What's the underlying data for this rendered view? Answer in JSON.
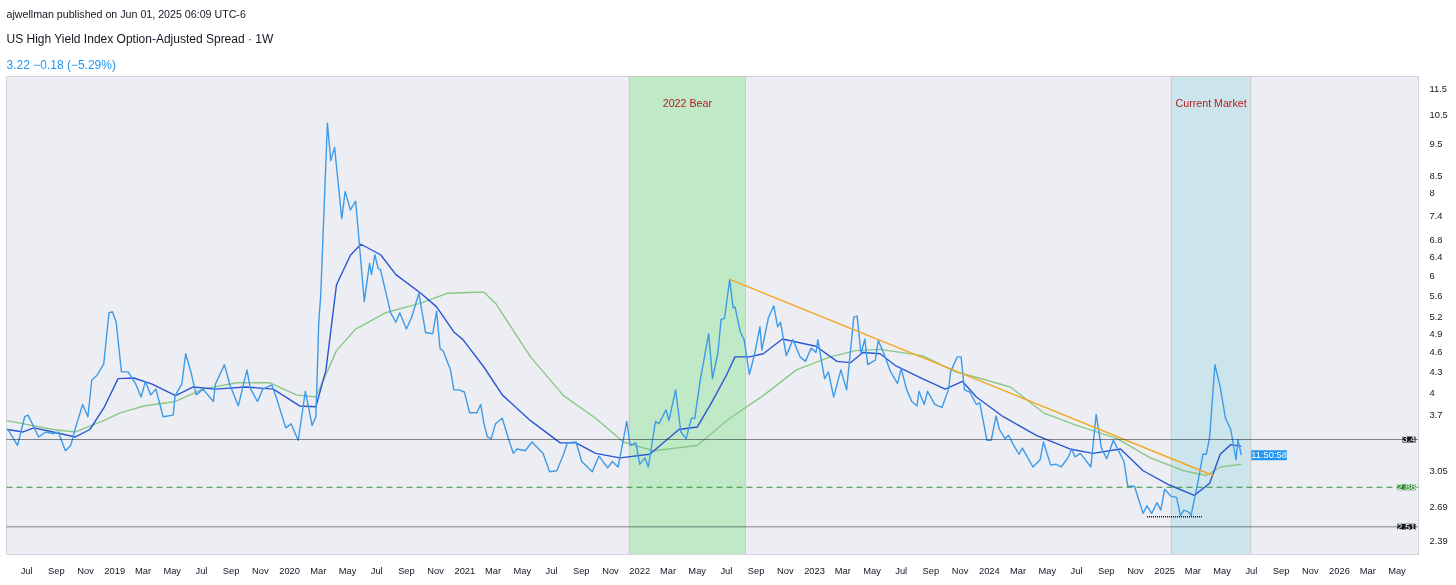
{
  "chart_data": {
    "type": "line",
    "title": "US High Yield Index Option-Adjusted Spread · 1W",
    "subtitle": "3.22 −0.18 (−5.29%)",
    "annotations": [
      "ajwellman published on Jun 01, 2025 06:09 UTC-6",
      {
        "text": "11:50:58",
        "x": "2025-06-10",
        "y": 3.22
      }
    ],
    "log": "y",
    "grid": false,
    "marker": "none",
    "xlim": [
      "2018-05-20",
      "2026-06-15"
    ],
    "ylim": [
      2.28,
      12.0
    ],
    "xticks": [
      {
        "value": "2018-07-01",
        "label": "Jul"
      },
      {
        "value": "2018-09-01",
        "label": "Sep"
      },
      {
        "value": "2018-11-01",
        "label": "Nov"
      },
      {
        "value": "2019-01-01",
        "label": "2019"
      },
      {
        "value": "2019-03-01",
        "label": "Mar"
      },
      {
        "value": "2019-05-01",
        "label": "May"
      },
      {
        "value": "2019-07-01",
        "label": "Jul"
      },
      {
        "value": "2019-09-01",
        "label": "Sep"
      },
      {
        "value": "2019-11-01",
        "label": "Nov"
      },
      {
        "value": "2020-01-01",
        "label": "2020"
      },
      {
        "value": "2020-03-01",
        "label": "Mar"
      },
      {
        "value": "2020-05-01",
        "label": "May"
      },
      {
        "value": "2020-07-01",
        "label": "Jul"
      },
      {
        "value": "2020-09-01",
        "label": "Sep"
      },
      {
        "value": "2020-11-01",
        "label": "Nov"
      },
      {
        "value": "2021-01-01",
        "label": "2021"
      },
      {
        "value": "2021-03-01",
        "label": "Mar"
      },
      {
        "value": "2021-05-01",
        "label": "May"
      },
      {
        "value": "2021-07-01",
        "label": "Jul"
      },
      {
        "value": "2021-09-01",
        "label": "Sep"
      },
      {
        "value": "2021-11-01",
        "label": "Nov"
      },
      {
        "value": "2022-01-01",
        "label": "2022"
      },
      {
        "value": "2022-03-01",
        "label": "Mar"
      },
      {
        "value": "2022-05-01",
        "label": "May"
      },
      {
        "value": "2022-07-01",
        "label": "Jul"
      },
      {
        "value": "2022-09-01",
        "label": "Sep"
      },
      {
        "value": "2022-11-01",
        "label": "Nov"
      },
      {
        "value": "2023-01-01",
        "label": "2023"
      },
      {
        "value": "2023-03-01",
        "label": "Mar"
      },
      {
        "value": "2023-05-01",
        "label": "May"
      },
      {
        "value": "2023-07-01",
        "label": "Jul"
      },
      {
        "value": "2023-09-01",
        "label": "Sep"
      },
      {
        "value": "2023-11-01",
        "label": "Nov"
      },
      {
        "value": "2024-01-01",
        "label": "2024"
      },
      {
        "value": "2024-03-01",
        "label": "Mar"
      },
      {
        "value": "2024-05-01",
        "label": "May"
      },
      {
        "value": "2024-07-01",
        "label": "Jul"
      },
      {
        "value": "2024-09-01",
        "label": "Sep"
      },
      {
        "value": "2024-11-01",
        "label": "Nov"
      },
      {
        "value": "2025-01-01",
        "label": "2025"
      },
      {
        "value": "2025-03-01",
        "label": "Mar"
      },
      {
        "value": "2025-05-01",
        "label": "May"
      },
      {
        "value": "2025-07-01",
        "label": "Jul"
      },
      {
        "value": "2025-09-01",
        "label": "Sep"
      },
      {
        "value": "2025-11-01",
        "label": "Nov"
      },
      {
        "value": "2026-01-01",
        "label": "2026"
      },
      {
        "value": "2026-03-01",
        "label": "Mar"
      },
      {
        "value": "2026-05-01",
        "label": "May"
      }
    ],
    "yticks": [
      2.39,
      2.69,
      3.05,
      3.7,
      4,
      4.3,
      4.6,
      4.9,
      5.2,
      5.6,
      6,
      6.4,
      6.8,
      7.4,
      8,
      8.5,
      9.5,
      10.5,
      11.5
    ],
    "ref_lines": [
      {
        "axis": "y",
        "value": 3.4,
        "label": "3.4",
        "color": "#131722",
        "line_style": "dotted"
      },
      {
        "axis": "y",
        "value": 2.88,
        "label": "2.88",
        "color": "#388e3c",
        "line_style": "dashed"
      },
      {
        "axis": "y",
        "value": 2.51,
        "label": "2.51",
        "color": "#131722",
        "line_style": "dotted"
      }
    ],
    "bands": [
      {
        "axis": "x",
        "from": "2021-12-10",
        "to": "2022-08-10",
        "label": "2022 Bear",
        "color": "#b9e8bf"
      },
      {
        "axis": "x",
        "from": "2025-01-15",
        "to": "2025-06-30",
        "label": "Current Market",
        "color": "#c7e2ea"
      }
    ],
    "series": [
      {
        "color": "#8cc78a",
        "x": [
          "2018-05-21",
          "2018-08-25",
          "2018-10-11",
          "2018-12-09",
          "2019-01-12",
          "2019-03-03",
          "2019-05-08",
          "2019-07-04",
          "2019-09-12",
          "2019-11-21",
          "2020-01-15",
          "2020-02-25",
          "2020-04-08",
          "2020-05-18",
          "2020-07-19",
          "2020-10-01",
          "2020-11-25",
          "2021-01-26",
          "2021-02-10",
          "2021-03-06",
          "2021-05-18",
          "2021-07-26",
          "2021-10-01",
          "2021-11-28",
          "2022-01-30",
          "2022-05-01",
          "2022-07-08",
          "2022-09-16",
          "2022-11-24",
          "2023-02-03",
          "2023-03-28",
          "2023-05-18",
          "2023-08-14",
          "2023-10-23",
          "2023-12-05",
          "2024-02-14",
          "2024-04-23",
          "2024-07-01",
          "2024-09-24",
          "2024-12-02",
          "2025-02-10",
          "2025-03-29",
          "2025-04-27",
          "2025-06-10"
        ],
        "values": [
          3.63,
          3.52,
          3.49,
          3.63,
          3.73,
          3.82,
          3.88,
          4.05,
          4.14,
          4.14,
          3.97,
          3.94,
          4.63,
          4.99,
          5.28,
          5.46,
          5.65,
          5.67,
          5.67,
          5.46,
          4.53,
          3.96,
          3.66,
          3.37,
          3.27,
          3.33,
          3.66,
          3.96,
          4.33,
          4.53,
          4.63,
          4.65,
          4.55,
          4.3,
          4.22,
          4.08,
          3.73,
          3.57,
          3.41,
          3.19,
          3.05,
          3.0,
          3.09,
          3.12
        ]
      },
      {
        "color": "#2a56d4",
        "x": [
          "2018-05-21",
          "2018-06-24",
          "2018-07-16",
          "2018-08-25",
          "2018-10-11",
          "2018-11-10",
          "2018-12-09",
          "2019-01-08",
          "2019-02-10",
          "2019-03-20",
          "2019-05-08",
          "2019-06-13",
          "2019-07-30",
          "2019-10-01",
          "2019-11-28",
          "2020-01-22",
          "2020-02-25",
          "2020-03-17",
          "2020-04-08",
          "2020-05-07",
          "2020-05-29",
          "2020-07-09",
          "2020-08-10",
          "2020-10-01",
          "2020-11-03",
          "2020-12-09",
          "2020-12-28",
          "2021-02-10",
          "2021-03-20",
          "2021-05-18",
          "2021-07-19",
          "2021-08-21",
          "2021-10-01",
          "2021-11-21",
          "2022-01-22",
          "2022-03-24",
          "2022-05-01",
          "2022-05-29",
          "2022-07-01",
          "2022-07-19",
          "2022-08-18",
          "2022-09-16",
          "2022-10-26",
          "2023-01-04",
          "2023-02-17",
          "2023-03-17",
          "2023-04-12",
          "2023-05-18",
          "2023-06-20",
          "2023-08-14",
          "2023-10-01",
          "2023-11-06",
          "2023-12-05",
          "2024-01-30",
          "2024-04-08",
          "2024-06-17",
          "2024-08-04",
          "2024-10-01",
          "2024-11-17",
          "2025-01-12",
          "2025-03-04",
          "2025-04-05",
          "2025-04-27",
          "2025-05-19",
          "2025-06-10"
        ],
        "values": [
          3.52,
          3.49,
          3.54,
          3.49,
          3.43,
          3.52,
          3.79,
          4.2,
          4.21,
          4.12,
          3.96,
          4.08,
          4.05,
          4.08,
          4.05,
          3.82,
          3.81,
          4.33,
          5.82,
          6.45,
          6.7,
          6.46,
          6.03,
          5.65,
          5.39,
          4.94,
          4.81,
          4.37,
          3.97,
          3.63,
          3.36,
          3.36,
          3.24,
          3.19,
          3.23,
          3.52,
          3.55,
          3.84,
          4.25,
          4.53,
          4.53,
          4.58,
          4.82,
          4.7,
          4.46,
          4.44,
          4.6,
          4.58,
          4.39,
          4.2,
          4.05,
          4.16,
          3.94,
          3.68,
          3.45,
          3.29,
          3.24,
          3.29,
          3.05,
          2.9,
          2.8,
          2.92,
          3.23,
          3.34,
          3.32
        ]
      },
      {
        "color": "#3d9be9",
        "x": [
          "2018-05-23",
          "2018-06-12",
          "2018-06-27",
          "2018-07-04",
          "2018-07-26",
          "2018-08-10",
          "2018-08-25",
          "2018-09-05",
          "2018-09-20",
          "2018-10-01",
          "2018-10-11",
          "2018-10-26",
          "2018-11-06",
          "2018-11-14",
          "2018-11-25",
          "2018-12-09",
          "2018-12-20",
          "2018-12-27",
          "2019-01-04",
          "2019-01-15",
          "2019-01-29",
          "2019-02-14",
          "2019-02-25",
          "2019-03-06",
          "2019-03-17",
          "2019-03-28",
          "2019-04-12",
          "2019-05-03",
          "2019-05-07",
          "2019-05-21",
          "2019-05-29",
          "2019-06-09",
          "2019-06-20",
          "2019-07-04",
          "2019-07-26",
          "2019-07-30",
          "2019-08-18",
          "2019-08-29",
          "2019-09-16",
          "2019-10-04",
          "2019-10-11",
          "2019-10-26",
          "2019-11-06",
          "2019-11-25",
          "2019-12-05",
          "2019-12-24",
          "2020-01-04",
          "2020-01-19",
          "2020-02-03",
          "2020-02-17",
          "2020-02-25",
          "2020-03-02",
          "2020-03-06",
          "2020-03-20",
          "2020-03-27",
          "2020-04-04",
          "2020-04-19",
          "2020-04-26",
          "2020-05-07",
          "2020-05-18",
          "2020-06-05",
          "2020-06-16",
          "2020-06-20",
          "2020-06-27",
          "2020-07-04",
          "2020-07-09",
          "2020-07-30",
          "2020-08-10",
          "2020-08-18",
          "2020-09-01",
          "2020-09-12",
          "2020-09-27",
          "2020-10-11",
          "2020-10-26",
          "2020-11-03",
          "2020-11-10",
          "2020-11-17",
          "2020-12-02",
          "2020-12-09",
          "2020-12-20",
          "2020-12-31",
          "2021-01-11",
          "2021-01-26",
          "2021-02-03",
          "2021-02-10",
          "2021-02-17",
          "2021-02-25",
          "2021-03-06",
          "2021-03-20",
          "2021-04-01",
          "2021-04-12",
          "2021-04-20",
          "2021-05-07",
          "2021-05-21",
          "2021-06-13",
          "2021-06-27",
          "2021-07-12",
          "2021-07-26",
          "2021-08-03",
          "2021-08-21",
          "2021-09-02",
          "2021-09-24",
          "2021-10-08",
          "2021-10-26",
          "2021-11-05",
          "2021-11-17",
          "2021-12-05",
          "2021-12-12",
          "2021-12-24",
          "2022-01-01",
          "2022-01-12",
          "2022-01-19",
          "2022-02-03",
          "2022-02-10",
          "2022-02-25",
          "2022-03-03",
          "2022-03-17",
          "2022-03-28",
          "2022-04-08",
          "2022-04-19",
          "2022-04-26",
          "2022-05-07",
          "2022-05-25",
          "2022-06-02",
          "2022-06-13",
          "2022-06-20",
          "2022-06-27",
          "2022-07-08",
          "2022-07-15",
          "2022-07-19",
          "2022-07-30",
          "2022-08-07",
          "2022-08-18",
          "2022-08-29",
          "2022-09-09",
          "2022-09-13",
          "2022-09-27",
          "2022-10-08",
          "2022-10-16",
          "2022-10-22",
          "2022-11-03",
          "2022-11-17",
          "2022-12-02",
          "2022-12-13",
          "2022-12-25",
          "2023-01-04",
          "2023-01-08",
          "2023-01-22",
          "2023-01-30",
          "2023-02-10",
          "2023-02-25",
          "2023-03-09",
          "2023-03-24",
          "2023-03-31",
          "2023-04-08",
          "2023-04-16",
          "2023-04-22",
          "2023-05-08",
          "2023-05-14",
          "2023-05-26",
          "2023-06-09",
          "2023-06-23",
          "2023-07-01",
          "2023-07-12",
          "2023-07-23",
          "2023-08-03",
          "2023-08-07",
          "2023-08-18",
          "2023-08-25",
          "2023-09-09",
          "2023-09-24",
          "2023-10-08",
          "2023-10-12",
          "2023-10-26",
          "2023-11-03",
          "2023-11-10",
          "2023-11-21",
          "2023-12-05",
          "2023-12-12",
          "2023-12-27",
          "2024-01-05",
          "2024-01-15",
          "2024-01-22",
          "2024-02-03",
          "2024-02-10",
          "2024-02-21",
          "2024-03-03",
          "2024-03-10",
          "2024-04-01",
          "2024-04-16",
          "2024-04-23",
          "2024-05-08",
          "2024-05-19",
          "2024-05-30",
          "2024-06-13",
          "2024-06-21",
          "2024-06-28",
          "2024-07-09",
          "2024-07-31",
          "2024-08-11",
          "2024-08-22",
          "2024-09-02",
          "2024-09-16",
          "2024-09-24",
          "2024-10-08",
          "2024-10-16",
          "2024-10-30",
          "2024-11-17",
          "2024-11-25",
          "2024-12-05",
          "2024-12-16",
          "2024-12-24",
          "2025-01-01",
          "2025-01-15",
          "2025-01-26",
          "2025-02-03",
          "2025-02-10",
          "2025-02-21",
          "2025-02-25",
          "2025-03-11",
          "2025-03-22",
          "2025-03-29",
          "2025-04-05",
          "2025-04-16",
          "2025-04-27",
          "2025-05-08",
          "2025-05-19",
          "2025-05-30",
          "2025-06-03",
          "2025-06-10"
        ],
        "values": [
          3.52,
          3.33,
          3.68,
          3.7,
          3.43,
          3.49,
          3.47,
          3.49,
          3.27,
          3.33,
          3.54,
          3.84,
          3.68,
          4.18,
          4.25,
          4.42,
          5.28,
          5.3,
          5.11,
          4.3,
          4.3,
          4.12,
          3.94,
          4.16,
          3.97,
          4.05,
          3.68,
          3.7,
          3.96,
          4.12,
          4.58,
          4.3,
          3.97,
          4.05,
          3.88,
          4.12,
          4.41,
          4.12,
          3.82,
          4.33,
          4.06,
          3.88,
          4.05,
          4.11,
          3.92,
          3.54,
          3.59,
          3.39,
          4.02,
          3.57,
          3.68,
          5.12,
          5.6,
          10.2,
          8.96,
          9.38,
          7.32,
          8.05,
          7.55,
          7.78,
          5.49,
          6.27,
          6.03,
          6.46,
          6.16,
          6.13,
          5.28,
          5.11,
          5.28,
          4.99,
          5.2,
          5.65,
          4.93,
          4.91,
          5.31,
          4.67,
          4.62,
          4.33,
          4.04,
          4.04,
          4.01,
          3.73,
          3.73,
          3.84,
          3.59,
          3.43,
          3.41,
          3.59,
          3.66,
          3.43,
          3.24,
          3.29,
          3.27,
          3.37,
          3.24,
          3.04,
          3.05,
          3.23,
          3.36,
          3.37,
          3.15,
          3.04,
          3.21,
          3.08,
          3.15,
          3.09,
          3.62,
          3.33,
          3.36,
          3.12,
          3.19,
          3.09,
          3.62,
          3.59,
          3.77,
          3.63,
          4.04,
          3.49,
          3.41,
          3.66,
          3.66,
          4.16,
          4.91,
          4.2,
          4.58,
          5.16,
          5.18,
          5.93,
          5.37,
          5.39,
          4.94,
          4.81,
          4.26,
          4.58,
          5.03,
          4.64,
          5.2,
          5.41,
          5.03,
          5.11,
          4.55,
          4.81,
          4.53,
          4.46,
          4.67,
          4.6,
          4.81,
          4.2,
          4.3,
          3.94,
          4.33,
          4.04,
          5.2,
          5.22,
          4.58,
          4.82,
          4.41,
          4.48,
          4.8,
          4.58,
          4.3,
          4.13,
          4.35,
          4.05,
          3.88,
          3.82,
          4.02,
          3.84,
          4.02,
          3.84,
          3.8,
          4.05,
          4.3,
          4.53,
          4.53,
          4.04,
          4.01,
          3.84,
          3.86,
          3.39,
          3.39,
          3.69,
          3.52,
          3.41,
          3.45,
          3.33,
          3.23,
          3.3,
          3.09,
          3.17,
          3.37,
          3.11,
          3.12,
          3.09,
          3.19,
          3.29,
          3.2,
          3.24,
          3.09,
          3.71,
          3.3,
          3.18,
          3.39,
          3.3,
          3.15,
          2.89,
          2.89,
          2.63,
          2.7,
          2.63,
          2.73,
          2.66,
          2.86,
          2.79,
          2.78,
          2.61,
          2.66,
          2.64,
          2.61,
          2.92,
          3.23,
          3.23,
          3.43,
          4.41,
          4.08,
          3.66,
          3.52,
          3.17,
          3.4,
          3.22
        ]
      },
      {
        "color": "#f5a623",
        "x": [
          "2022-07-08",
          "2025-04-12"
        ],
        "values": [
          5.93,
          3.0
        ]
      },
      {
        "color": "#131722",
        "line_style": "dotted",
        "x": [
          "2024-11-25",
          "2025-03-20"
        ],
        "values": [
          2.6,
          2.6
        ]
      }
    ]
  }
}
